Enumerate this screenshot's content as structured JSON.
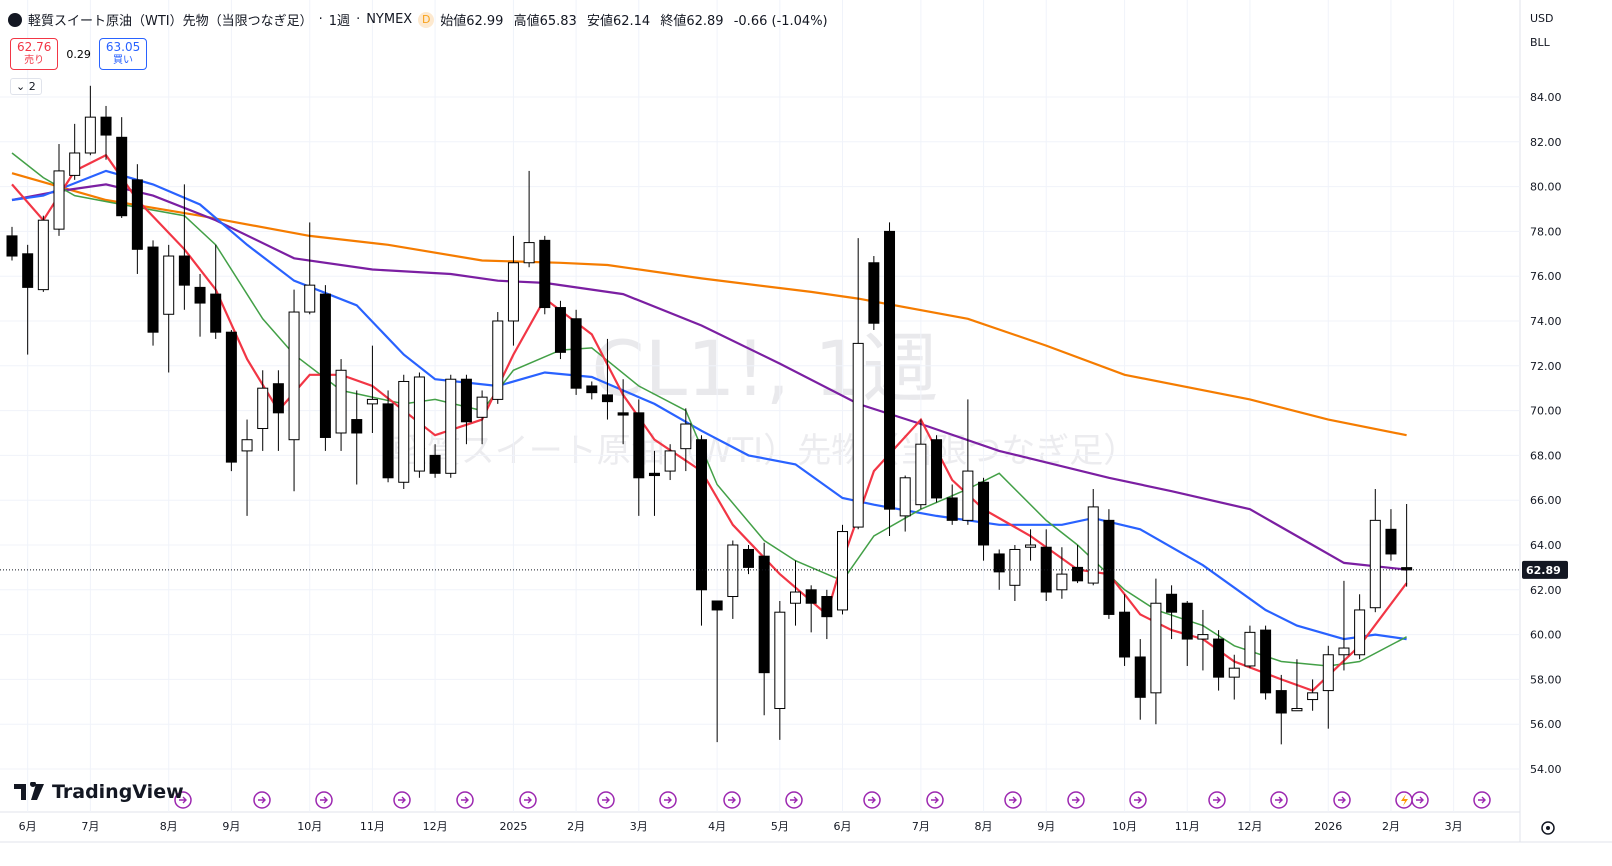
{
  "header": {
    "title": "軽質スイート原油（WTI）先物（当限つなぎ足）",
    "interval": "1週",
    "exchange": "NYMEX",
    "badge": "D",
    "ohlc": [
      {
        "label": "始値",
        "value": 62.99
      },
      {
        "label": "高値",
        "value": 65.83
      },
      {
        "label": "安値",
        "value": 62.14
      },
      {
        "label": "終値",
        "value": 62.89
      }
    ],
    "change": -0.66,
    "change_percent": "(-1.04%)",
    "sell_price": 62.76,
    "sell_label": "売り",
    "spread": 0.29,
    "buy_price": 63.05,
    "buy_label": "買い",
    "indicator_count": 2,
    "currency": "USD",
    "unit": "BLL",
    "brand": "TradingView"
  },
  "chart_data": {
    "type": "candlestick",
    "watermark_symbol": "CL1!, 1週",
    "watermark_name": "軽質スイート原油（WTI）先物（当限つなぎ足）",
    "categories": [
      null,
      "6月",
      null,
      null,
      null,
      "7月",
      null,
      null,
      null,
      null,
      "8月",
      null,
      null,
      null,
      "9月",
      null,
      null,
      null,
      null,
      "10月",
      null,
      null,
      null,
      "11月",
      null,
      null,
      null,
      "12月",
      null,
      null,
      null,
      null,
      "2025",
      null,
      null,
      null,
      "2月",
      null,
      null,
      null,
      "3月",
      null,
      null,
      null,
      null,
      "4月",
      null,
      null,
      null,
      "5月",
      null,
      null,
      null,
      "6月",
      null,
      null,
      null,
      null,
      "7月",
      null,
      null,
      null,
      "8月",
      null,
      null,
      null,
      "9月",
      null,
      null,
      null,
      null,
      "10月",
      null,
      null,
      null,
      "11月",
      null,
      null,
      null,
      "12月",
      null,
      null,
      null,
      null,
      "2026",
      null,
      null,
      null,
      "2月",
      null,
      null,
      null,
      "3月"
    ],
    "open": [
      77.8,
      77.0,
      75.4,
      78.1,
      80.5,
      81.5,
      83.1,
      82.2,
      80.3,
      77.3,
      74.3,
      76.9,
      75.5,
      75.2,
      73.5,
      68.2,
      69.2,
      71.2,
      68.7,
      74.4,
      75.2,
      69.0,
      69.6,
      70.3,
      70.3,
      66.8,
      67.3,
      68.0,
      67.2,
      71.4,
      69.7,
      70.5,
      74.0,
      76.6,
      77.6,
      74.6,
      74.1,
      71.1,
      70.7,
      69.9,
      69.9,
      67.2,
      67.3,
      68.3,
      68.7,
      61.5,
      61.7,
      63.8,
      63.5,
      56.7,
      61.4,
      62.0,
      61.7,
      61.1,
      64.8,
      76.6,
      78.0,
      65.3,
      65.8,
      68.7,
      66.1,
      65.1,
      66.8,
      63.6,
      62.2,
      63.9,
      63.9,
      62.0,
      63.0,
      62.3,
      65.1,
      61.0,
      59.0,
      57.4,
      61.8,
      61.4,
      59.8,
      59.8,
      58.1,
      58.6,
      60.2,
      57.5,
      56.6,
      57.1,
      57.5,
      59.1,
      59.1,
      61.2,
      64.7,
      62.99,
      null,
      null,
      null
    ],
    "high": [
      78.2,
      77.4,
      78.7,
      81.9,
      82.8,
      84.5,
      83.6,
      83.1,
      81.0,
      77.6,
      77.4,
      80.1,
      76.1,
      77.4,
      73.6,
      69.6,
      71.8,
      71.8,
      75.4,
      78.4,
      75.6,
      72.3,
      70.9,
      72.9,
      70.9,
      71.6,
      71.7,
      68.5,
      71.6,
      71.6,
      70.9,
      74.4,
      77.8,
      80.7,
      77.8,
      74.9,
      74.5,
      71.3,
      73.2,
      71.4,
      70.5,
      68.2,
      68.5,
      70.1,
      68.9,
      61.5,
      64.2,
      64.0,
      64.1,
      61.5,
      63.3,
      62.2,
      62.0,
      64.9,
      77.7,
      76.9,
      78.4,
      67.1,
      69.6,
      68.9,
      66.7,
      70.5,
      67.0,
      63.8,
      64.0,
      64.7,
      64.7,
      63.9,
      64.0,
      66.5,
      65.6,
      61.8,
      59.8,
      62.5,
      62.2,
      61.5,
      61.1,
      60.2,
      59.1,
      60.4,
      60.4,
      58.2,
      58.9,
      58.0,
      59.5,
      62.4,
      61.8,
      66.5,
      65.6,
      65.83,
      null,
      null,
      null
    ],
    "low": [
      76.7,
      72.5,
      75.3,
      77.8,
      80.3,
      81.4,
      81.2,
      78.6,
      76.1,
      72.9,
      71.7,
      74.5,
      73.3,
      73.2,
      67.3,
      65.3,
      68.2,
      68.2,
      66.4,
      74.3,
      68.2,
      68.2,
      66.7,
      69.0,
      66.8,
      66.5,
      67.0,
      67.0,
      67.0,
      68.5,
      68.5,
      70.3,
      72.9,
      76.4,
      74.3,
      72.3,
      70.7,
      70.5,
      69.6,
      68.5,
      65.3,
      65.3,
      66.9,
      67.3,
      60.4,
      55.2,
      60.7,
      62.7,
      56.4,
      55.3,
      60.4,
      60.1,
      59.8,
      60.9,
      64.7,
      73.6,
      64.4,
      64.6,
      65.6,
      65.9,
      64.9,
      64.9,
      63.3,
      62.0,
      61.5,
      63.3,
      61.5,
      61.6,
      62.3,
      62.2,
      60.7,
      58.6,
      56.2,
      56.0,
      59.8,
      58.6,
      58.4,
      57.5,
      57.1,
      58.5,
      57.1,
      55.1,
      56.6,
      56.6,
      55.8,
      58.4,
      58.9,
      61.0,
      63.3,
      62.14,
      null,
      null,
      null
    ],
    "close": [
      76.9,
      75.5,
      78.5,
      80.7,
      81.5,
      83.1,
      82.3,
      78.7,
      77.2,
      73.5,
      76.9,
      75.6,
      74.8,
      73.5,
      67.7,
      68.7,
      71.0,
      69.9,
      74.4,
      75.6,
      68.8,
      71.8,
      69.0,
      70.5,
      67.0,
      71.3,
      71.5,
      67.2,
      71.4,
      69.5,
      70.6,
      74.0,
      76.6,
      77.5,
      74.6,
      72.6,
      71.0,
      70.8,
      70.4,
      69.8,
      67.0,
      67.1,
      68.2,
      69.4,
      62.0,
      61.1,
      64.0,
      63.0,
      58.3,
      61.0,
      61.9,
      61.4,
      60.8,
      64.6,
      73.0,
      73.9,
      65.6,
      67.0,
      68.5,
      66.1,
      65.1,
      67.3,
      64.0,
      62.8,
      63.8,
      64.0,
      61.9,
      62.7,
      62.4,
      65.7,
      60.9,
      59.0,
      57.2,
      61.4,
      61.0,
      59.8,
      60.0,
      58.1,
      58.5,
      60.1,
      57.4,
      56.5,
      56.7,
      57.4,
      59.1,
      59.4,
      61.1,
      65.1,
      63.6,
      62.89,
      null,
      null,
      null
    ],
    "up_color": "#ffffff",
    "down_color": "#000000",
    "series": [
      {
        "color": "#f57c00",
        "x": [
          0,
          6,
          12,
          19,
          24,
          30,
          35,
          38,
          44,
          51,
          54,
          61,
          66,
          71,
          79,
          84,
          89
        ],
        "values": [
          80.6,
          79.4,
          78.7,
          77.8,
          77.4,
          76.7,
          76.6,
          76.5,
          75.9,
          75.3,
          75.0,
          74.1,
          72.9,
          71.6,
          70.5,
          69.6,
          68.9
        ]
      },
      {
        "color": "#7b1fa2",
        "x": [
          0,
          3,
          6,
          9,
          13,
          18,
          23,
          28,
          31,
          34,
          39,
          44,
          49,
          54,
          58,
          63,
          70,
          74,
          79,
          83,
          85,
          89
        ],
        "values": [
          79.4,
          79.8,
          80.1,
          79.6,
          78.5,
          76.8,
          76.3,
          76.1,
          75.8,
          75.7,
          75.2,
          73.8,
          72.1,
          70.3,
          69.4,
          68.2,
          67.0,
          66.4,
          65.6,
          64.0,
          63.2,
          62.9
        ]
      },
      {
        "color": "#2962ff",
        "x": [
          0,
          2,
          6,
          9,
          12,
          15,
          18,
          22,
          25,
          27,
          31,
          34,
          37,
          41,
          44,
          47,
          50,
          53,
          55,
          59,
          63,
          67,
          69,
          72,
          76,
          80,
          82,
          85,
          87,
          89
        ],
        "values": [
          79.4,
          79.6,
          80.7,
          80.1,
          79.2,
          77.4,
          75.8,
          74.7,
          72.5,
          71.4,
          71.1,
          71.7,
          71.5,
          70.3,
          69.1,
          68.0,
          67.6,
          66.1,
          65.8,
          65.3,
          64.9,
          64.9,
          65.2,
          64.7,
          63.1,
          61.1,
          60.4,
          59.8,
          60.0,
          59.8
        ]
      },
      {
        "color": "#43a047",
        "x": [
          0,
          2,
          4,
          7,
          11,
          13,
          16,
          18,
          21,
          25,
          27,
          30,
          32,
          35,
          37,
          40,
          43,
          45,
          48,
          50,
          53,
          55,
          58,
          61,
          63,
          66,
          68,
          71,
          73,
          76,
          78,
          81,
          84,
          86,
          89
        ],
        "values": [
          81.5,
          80.4,
          79.6,
          79.2,
          78.7,
          77.4,
          74.1,
          72.5,
          70.9,
          70.3,
          70.5,
          70.0,
          71.8,
          72.7,
          72.8,
          71.1,
          70.0,
          66.7,
          64.2,
          63.3,
          62.4,
          64.4,
          65.6,
          66.5,
          67.2,
          65.1,
          64.0,
          62.0,
          61.1,
          60.4,
          59.5,
          58.8,
          58.6,
          58.8,
          59.9
        ]
      },
      {
        "color": "#f23645",
        "x": [
          0,
          2,
          4,
          6,
          8,
          11,
          13,
          15,
          17,
          19,
          21,
          23,
          25,
          27,
          30,
          32,
          34,
          37,
          39,
          41,
          44,
          46,
          49,
          52,
          53,
          55,
          58,
          60,
          62,
          65,
          68,
          70,
          72,
          74,
          76,
          78,
          81,
          83,
          86,
          89
        ],
        "values": [
          80.1,
          78.5,
          80.7,
          81.4,
          79.4,
          77.2,
          75.4,
          72.3,
          70.0,
          71.6,
          71.6,
          71.1,
          70.0,
          68.9,
          69.6,
          72.5,
          75.0,
          73.4,
          70.7,
          68.7,
          67.3,
          64.9,
          62.7,
          60.9,
          63.3,
          67.3,
          69.6,
          66.9,
          65.6,
          64.4,
          62.9,
          62.7,
          60.9,
          60.2,
          59.8,
          58.8,
          58.0,
          57.5,
          59.5,
          62.3
        ]
      }
    ],
    "ylim": [
      52.08,
      88.33
    ],
    "yticks": [
      {
        "value": 54,
        "label": "54.00"
      },
      {
        "value": 56,
        "label": "56.00"
      },
      {
        "value": 58,
        "label": "58.00"
      },
      {
        "value": 60,
        "label": "60.00"
      },
      {
        "value": 62,
        "label": "62.00"
      },
      {
        "value": 64,
        "label": "64.00"
      },
      {
        "value": 66,
        "label": "66.00"
      },
      {
        "value": 68,
        "label": "68.00"
      },
      {
        "value": 70,
        "label": "70.00"
      },
      {
        "value": 72,
        "label": "72.00"
      },
      {
        "value": 74,
        "label": "74.00"
      },
      {
        "value": 76,
        "label": "76.00"
      },
      {
        "value": 78,
        "label": "78.00"
      },
      {
        "value": 80,
        "label": "80.00"
      },
      {
        "value": 82,
        "label": "82.00"
      },
      {
        "value": 84,
        "label": "84.00"
      }
    ],
    "grid": true,
    "last_price": 62.89
  }
}
